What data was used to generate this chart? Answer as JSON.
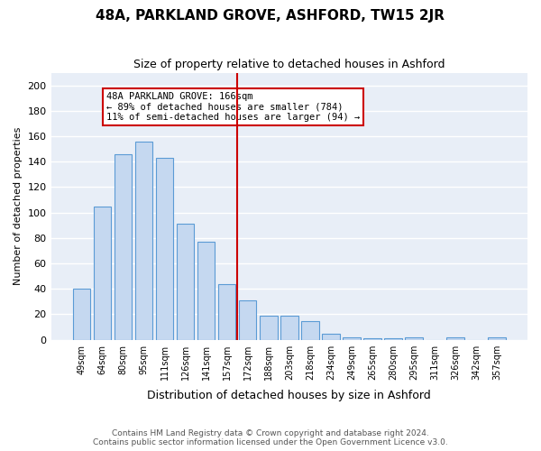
{
  "title": "48A, PARKLAND GROVE, ASHFORD, TW15 2JR",
  "subtitle": "Size of property relative to detached houses in Ashford",
  "xlabel": "Distribution of detached houses by size in Ashford",
  "ylabel": "Number of detached properties",
  "bar_color": "#c5d8f0",
  "bar_edge_color": "#5b9bd5",
  "categories": [
    "49sqm",
    "64sqm",
    "80sqm",
    "95sqm",
    "111sqm",
    "126sqm",
    "141sqm",
    "157sqm",
    "172sqm",
    "188sqm",
    "203sqm",
    "218sqm",
    "234sqm",
    "249sqm",
    "265sqm",
    "280sqm",
    "295sqm",
    "311sqm",
    "326sqm",
    "342sqm",
    "357sqm"
  ],
  "values": [
    40,
    105,
    146,
    156,
    143,
    91,
    77,
    44,
    31,
    19,
    19,
    15,
    5,
    2,
    1,
    1,
    2,
    0,
    2,
    0,
    2
  ],
  "vline_index": 8,
  "vline_color": "#cc0000",
  "annotation_text": "48A PARKLAND GROVE: 166sqm\n← 89% of detached houses are smaller (784)\n11% of semi-detached houses are larger (94) →",
  "annotation_box_color": "#cc0000",
  "ylim": [
    0,
    210
  ],
  "yticks": [
    0,
    20,
    40,
    60,
    80,
    100,
    120,
    140,
    160,
    180,
    200
  ],
  "background_color": "#e8eef7",
  "grid_color": "#ffffff",
  "footer_line1": "Contains HM Land Registry data © Crown copyright and database right 2024.",
  "footer_line2": "Contains public sector information licensed under the Open Government Licence v3.0."
}
